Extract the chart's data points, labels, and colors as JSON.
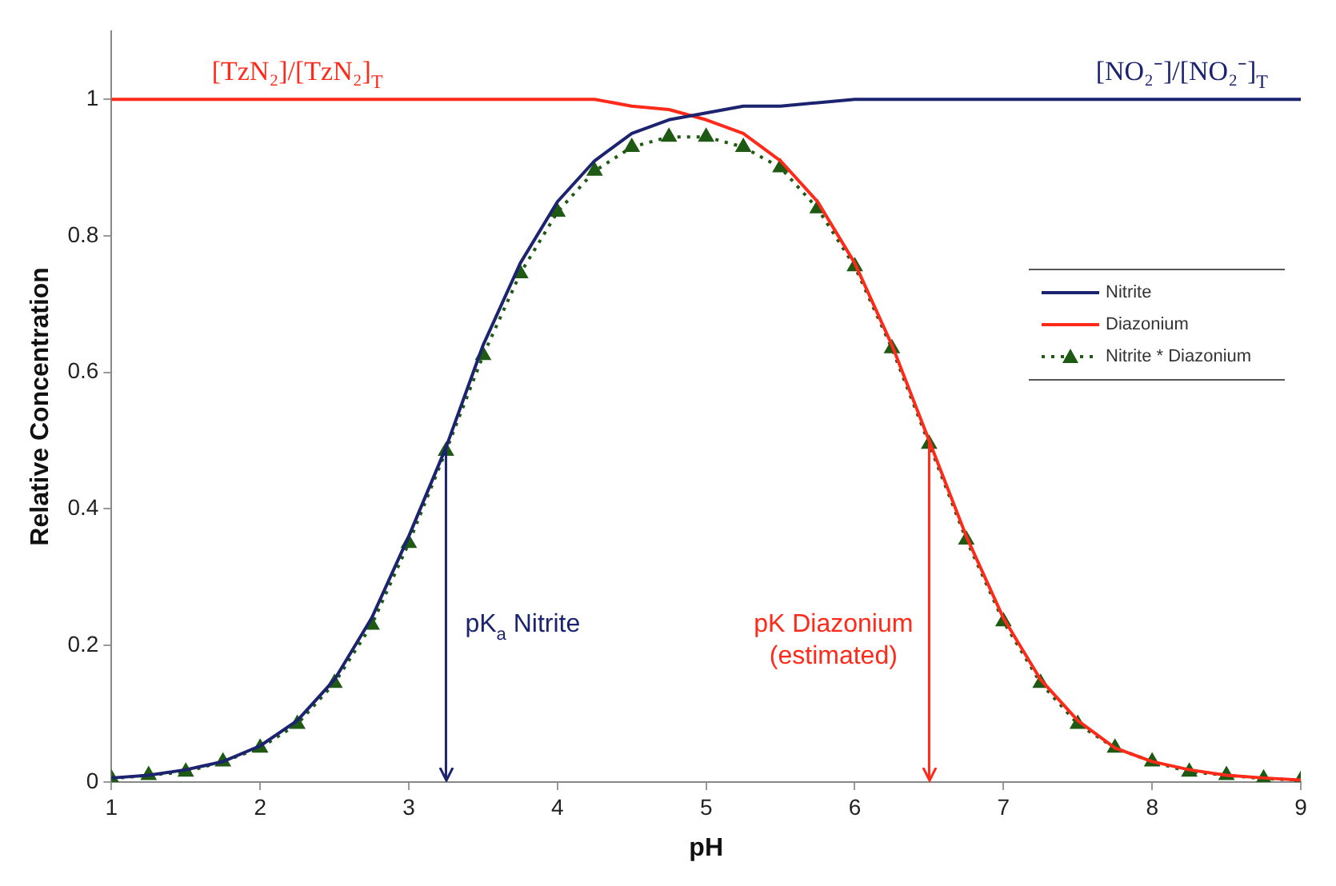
{
  "chart_data": {
    "type": "line",
    "xlabel": "pH",
    "ylabel": "Relative Concentration",
    "x": [
      1,
      1.25,
      1.5,
      1.75,
      2,
      2.25,
      2.5,
      2.75,
      3,
      3.25,
      3.5,
      3.75,
      4,
      4.25,
      4.5,
      4.75,
      5,
      5.25,
      5.5,
      5.75,
      6,
      6.25,
      6.5,
      6.75,
      7,
      7.25,
      7.5,
      7.75,
      8,
      8.25,
      8.5,
      8.75,
      9
    ],
    "series": [
      {
        "name": "Nitrite",
        "color": "#1c2470",
        "marker": "none",
        "line_style": "solid",
        "values": [
          0.006,
          0.01,
          0.018,
          0.03,
          0.053,
          0.09,
          0.15,
          0.24,
          0.36,
          0.49,
          0.64,
          0.76,
          0.85,
          0.91,
          0.95,
          0.97,
          0.98,
          0.99,
          0.99,
          0.995,
          1,
          1,
          1,
          1,
          1,
          1,
          1,
          1,
          1,
          1,
          1,
          1,
          1
        ]
      },
      {
        "name": "Diazonium",
        "color": "#ff2a1a",
        "marker": "none",
        "line_style": "solid",
        "values": [
          1,
          1,
          1,
          1,
          1,
          1,
          1,
          1,
          1,
          1,
          1,
          1,
          1,
          1,
          0.99,
          0.985,
          0.97,
          0.95,
          0.91,
          0.85,
          0.76,
          0.64,
          0.5,
          0.36,
          0.24,
          0.15,
          0.09,
          0.05,
          0.03,
          0.018,
          0.01,
          0.006,
          0.003
        ]
      },
      {
        "name": "Nitrite * Diazonium",
        "color": "#1e5a14",
        "marker": "triangle",
        "line_style": "dotted",
        "values": [
          0.005,
          0.01,
          0.015,
          0.03,
          0.05,
          0.085,
          0.145,
          0.23,
          0.35,
          0.485,
          0.625,
          0.745,
          0.835,
          0.895,
          0.93,
          0.945,
          0.945,
          0.93,
          0.9,
          0.84,
          0.755,
          0.635,
          0.495,
          0.355,
          0.235,
          0.145,
          0.085,
          0.05,
          0.03,
          0.015,
          0.01,
          0.005,
          0.003
        ]
      }
    ],
    "xlim": [
      1,
      9
    ],
    "xticks": [
      1,
      2,
      3,
      4,
      5,
      6,
      7,
      8,
      9
    ],
    "ylim": [
      0,
      1.1
    ],
    "yticks": [
      0,
      0.2,
      0.4,
      0.6,
      0.8,
      1
    ],
    "legend": "right",
    "annotations": [
      {
        "text": "[TzN₂]/[TzN₂]$_{T}$",
        "x": 2.25,
        "y": 1
      },
      {
        "text": "[NO₂⁻]/[NO₂⁻]$_{T}$",
        "x": 8.2,
        "y": 1
      }
    ],
    "ref_lines": [
      {
        "axis": "x",
        "value": 3.25,
        "label": "pK$_{a}$ Nitrite",
        "color": "#1c2470"
      },
      {
        "axis": "x",
        "value": 6.5,
        "label": "pK Diazonium\n(estimated)",
        "color": "#ff2a1a"
      }
    ]
  }
}
